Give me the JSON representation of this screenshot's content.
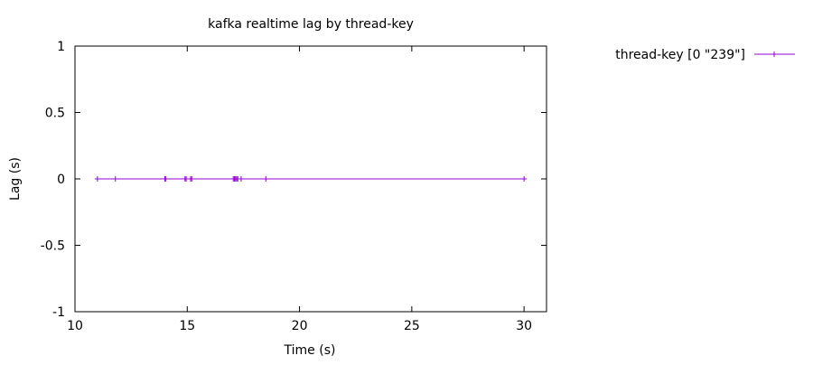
{
  "chart_data": {
    "type": "line",
    "title": "kafka realtime lag by thread-key",
    "xlabel": "Time (s)",
    "ylabel": "Lag (s)",
    "xlim": [
      10,
      31
    ],
    "ylim": [
      -1,
      1
    ],
    "x_ticks": [
      "10",
      "15",
      "20",
      "25",
      "30"
    ],
    "y_ticks": [
      "1",
      "0.5",
      "0",
      "-0.5",
      "-1"
    ],
    "x_tick_values": [
      10,
      15,
      20,
      25,
      30
    ],
    "y_tick_values": [
      1,
      0.5,
      0,
      -0.5,
      -1
    ],
    "grid": false,
    "legend_position": "outside-top-right",
    "series": [
      {
        "name": "thread-key [0 \"239\"]",
        "color": "#9400d3",
        "marker": "plus",
        "x": [
          11.0,
          11.8,
          14.0,
          14.05,
          14.9,
          14.95,
          15.15,
          15.2,
          17.05,
          17.1,
          17.15,
          17.2,
          17.25,
          17.4,
          18.5,
          30.0
        ],
        "y": [
          0,
          0,
          0,
          0,
          0,
          0,
          0,
          0,
          0,
          0,
          0,
          0,
          0,
          0,
          0,
          0
        ]
      }
    ]
  }
}
